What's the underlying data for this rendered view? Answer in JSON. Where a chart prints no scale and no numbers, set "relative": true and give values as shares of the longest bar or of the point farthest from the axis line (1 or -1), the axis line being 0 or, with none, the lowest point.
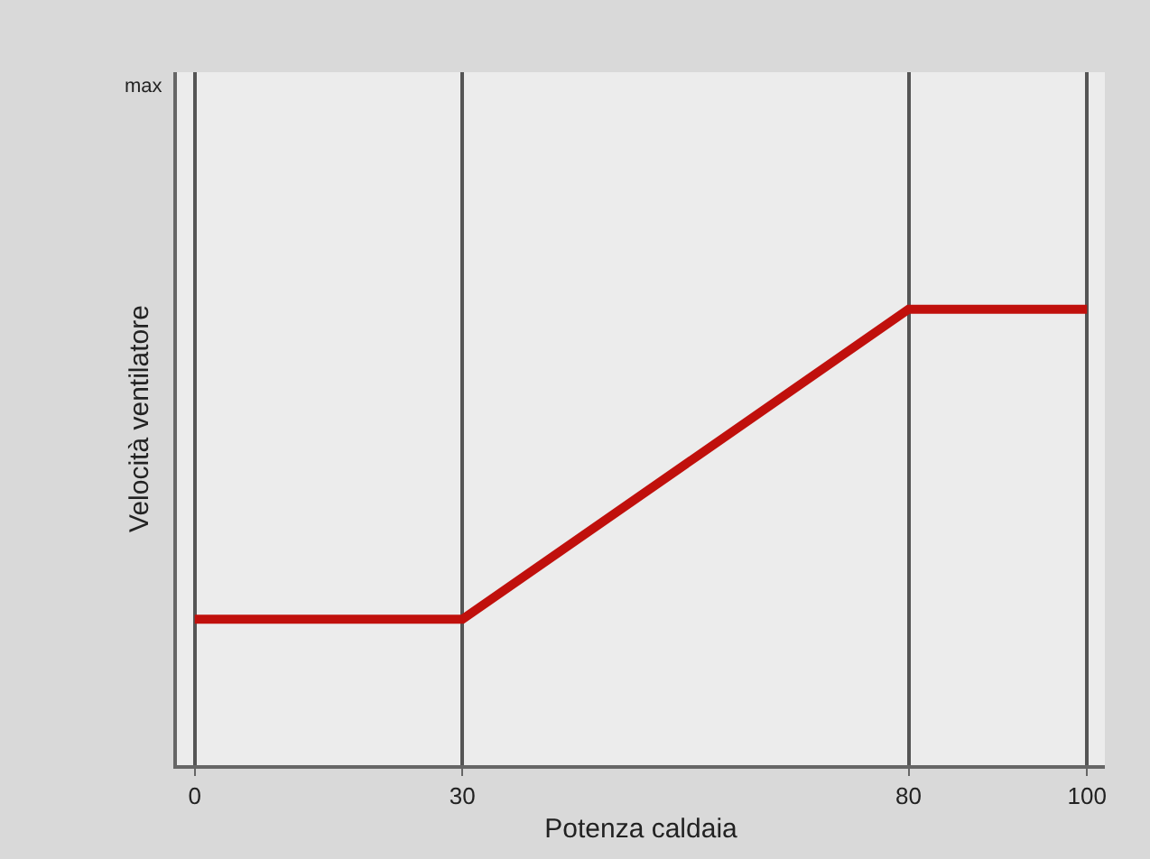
{
  "chart_data": {
    "type": "line",
    "xlabel": "Potenza caldaia",
    "ylabel": "Velocità ventilatore",
    "relative": true,
    "x": [
      0,
      30,
      80,
      100
    ],
    "series": [
      {
        "color": "#c0100c",
        "values": [
          0.32,
          0.32,
          1,
          1
        ]
      }
    ],
    "xlim": [
      -2,
      102
    ],
    "xticks": [
      0,
      30,
      80,
      100
    ],
    "grid": "x",
    "marker": "none",
    "line_style": "solid",
    "annotations": [
      "max"
    ]
  }
}
